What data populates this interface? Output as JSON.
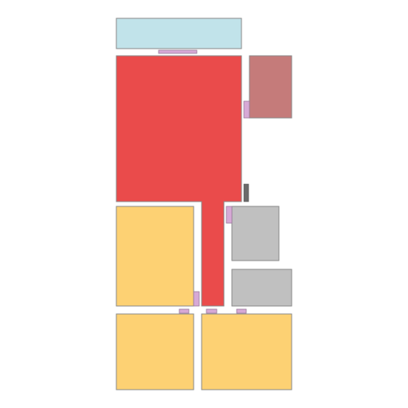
{
  "colors": {
    "background": "#ffffff",
    "outline": "#8a8a8a",
    "room_light_blue": "#c1e3ea",
    "room_red": "#ea4b4b",
    "room_dusty_red": "#c57b7a",
    "room_yellow": "#fdd173",
    "room_gray": "#c0c0c0",
    "door_pink": "#d7a9d6",
    "window_dark": "#6b6b6b"
  },
  "rooms": [
    {
      "name": "room-light-blue",
      "color_key": "room_light_blue"
    },
    {
      "name": "room-red",
      "color_key": "room_red"
    },
    {
      "name": "room-dusty-red",
      "color_key": "room_dusty_red"
    },
    {
      "name": "room-yellow-left",
      "color_key": "room_yellow"
    },
    {
      "name": "room-gray-top",
      "color_key": "room_gray"
    },
    {
      "name": "room-gray-bottom",
      "color_key": "room_gray"
    },
    {
      "name": "room-yellow-bottom-left",
      "color_key": "room_yellow"
    },
    {
      "name": "room-yellow-bottom-right",
      "color_key": "room_yellow"
    }
  ],
  "doors": [
    {
      "name": "door-light-blue-red",
      "color_key": "door_pink"
    },
    {
      "name": "door-red-dusty-red",
      "color_key": "door_pink"
    },
    {
      "name": "door-red-gray",
      "color_key": "door_pink"
    },
    {
      "name": "door-red-yellow-left",
      "color_key": "door_pink"
    },
    {
      "name": "door-yellow-bottom-left",
      "color_key": "door_pink"
    },
    {
      "name": "door-red-yellow-bottom-right",
      "color_key": "door_pink"
    },
    {
      "name": "door-yellow-bottom-right",
      "color_key": "door_pink"
    }
  ],
  "windows": [
    {
      "name": "window-dark",
      "color_key": "window_dark"
    }
  ]
}
